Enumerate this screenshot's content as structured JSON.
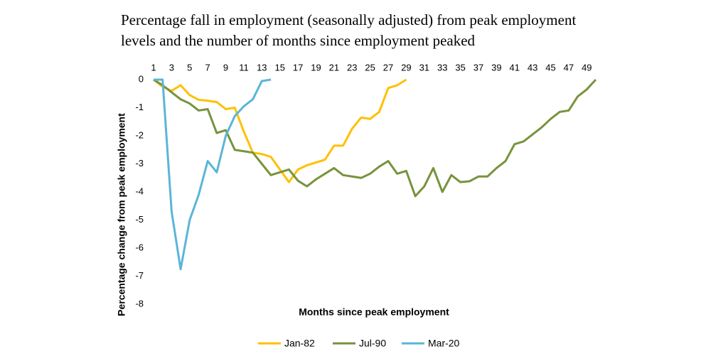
{
  "chart_data": {
    "type": "line",
    "title": "Percentage fall in employment (seasonally adjusted) from peak employment levels and the number of months since employment peaked",
    "x_label": "Months since peak employment",
    "y_label": "Percentage change from peak employment",
    "x": [
      1,
      2,
      3,
      4,
      5,
      6,
      7,
      8,
      9,
      10,
      11,
      12,
      13,
      14,
      15,
      16,
      17,
      18,
      19,
      20,
      21,
      22,
      23,
      24,
      25,
      26,
      27,
      28,
      29,
      30,
      31,
      32,
      33,
      34,
      35,
      36,
      37,
      38,
      39,
      40,
      41,
      42,
      43,
      44,
      45,
      46,
      47,
      48,
      49,
      50
    ],
    "xlim": [
      1,
      50
    ],
    "xticks": [
      1,
      3,
      5,
      7,
      9,
      11,
      13,
      15,
      17,
      19,
      21,
      23,
      25,
      27,
      29,
      31,
      33,
      35,
      37,
      39,
      41,
      43,
      45,
      47,
      49
    ],
    "ylim": [
      -8,
      0
    ],
    "yticks": [
      0,
      -1,
      -2,
      -3,
      -4,
      -5,
      -6,
      -7,
      -8
    ],
    "series": [
      {
        "name": "Jan-82",
        "color": "#ffc000",
        "values": [
          0,
          -0.25,
          -0.4,
          -0.2,
          -0.55,
          -0.72,
          -0.75,
          -0.8,
          -1.05,
          -1.0,
          -1.85,
          -2.6,
          -2.65,
          -2.75,
          -3.2,
          -3.65,
          -3.2,
          -3.05,
          -2.95,
          -2.85,
          -2.35,
          -2.35,
          -1.75,
          -1.35,
          -1.4,
          -1.15,
          -0.3,
          -0.2,
          0,
          null,
          null,
          null,
          null,
          null,
          null,
          null,
          null,
          null,
          null,
          null,
          null,
          null,
          null,
          null,
          null,
          null,
          null,
          null,
          null,
          null
        ]
      },
      {
        "name": "Jul-90",
        "color": "#77933c",
        "values": [
          0,
          -0.2,
          -0.45,
          -0.7,
          -0.85,
          -1.1,
          -1.05,
          -1.9,
          -1.8,
          -2.5,
          -2.55,
          -2.6,
          -3.0,
          -3.4,
          -3.3,
          -3.2,
          -3.6,
          -3.8,
          -3.55,
          -3.35,
          -3.15,
          -3.4,
          -3.45,
          -3.5,
          -3.35,
          -3.1,
          -2.9,
          -3.35,
          -3.25,
          -4.15,
          -3.8,
          -3.15,
          -4.0,
          -3.4,
          -3.65,
          -3.62,
          -3.45,
          -3.45,
          -3.15,
          -2.9,
          -2.3,
          -2.2,
          -1.95,
          -1.7,
          -1.4,
          -1.15,
          -1.1,
          -0.6,
          -0.35,
          0
        ]
      },
      {
        "name": "Mar-20",
        "color": "#5bb5d8",
        "values": [
          0,
          0,
          -4.7,
          -6.75,
          -5.0,
          -4.1,
          -2.9,
          -3.3,
          -2.0,
          -1.3,
          -0.95,
          -0.7,
          -0.05,
          0,
          null,
          null,
          null,
          null,
          null,
          null,
          null,
          null,
          null,
          null,
          null,
          null,
          null,
          null,
          null,
          null,
          null,
          null,
          null,
          null,
          null,
          null,
          null,
          null,
          null,
          null,
          null,
          null,
          null,
          null,
          null,
          null,
          null,
          null,
          null,
          null
        ]
      }
    ]
  }
}
